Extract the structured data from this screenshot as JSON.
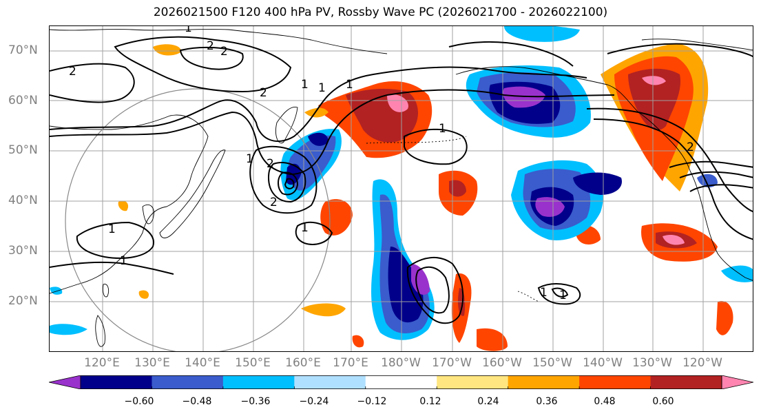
{
  "title": "2026021500 F120 400 hPa PV, Rossby Wave PC (2026021700 - 2026022100)",
  "lat_labels": [
    "70°N",
    "60°N",
    "50°N",
    "40°N",
    "30°N",
    "20°N"
  ],
  "lon_labels": [
    "120°E",
    "130°E",
    "140°E",
    "150°E",
    "160°E",
    "170°E",
    "180°W",
    "170°W",
    "160°W",
    "150°W",
    "140°W",
    "130°W",
    "120°W"
  ],
  "colorbar": {
    "colors": [
      "#9932CC",
      "#00008B",
      "#3A5CCC",
      "#00BFFF",
      "#B0E0FF",
      "#FFFFFF",
      "#FFE680",
      "#FFA500",
      "#FF4500",
      "#B22222",
      "#FF85B0"
    ],
    "tick_labels": [
      "−0.60",
      "−0.48",
      "−0.36",
      "−0.24",
      "−0.12",
      "0.12",
      "0.24",
      "0.36",
      "0.48",
      "0.60"
    ]
  },
  "contour_labels": [
    "1",
    "2",
    "2",
    "2",
    "1",
    "1",
    "2",
    "1",
    "2",
    "1",
    "1",
    "1",
    "1",
    "2",
    "1",
    "1",
    "1",
    "2"
  ],
  "palette": {
    "land_outline": "#000000",
    "grid": "#a0a0a0",
    "contour": "#000000",
    "label_gray": "#808080"
  }
}
